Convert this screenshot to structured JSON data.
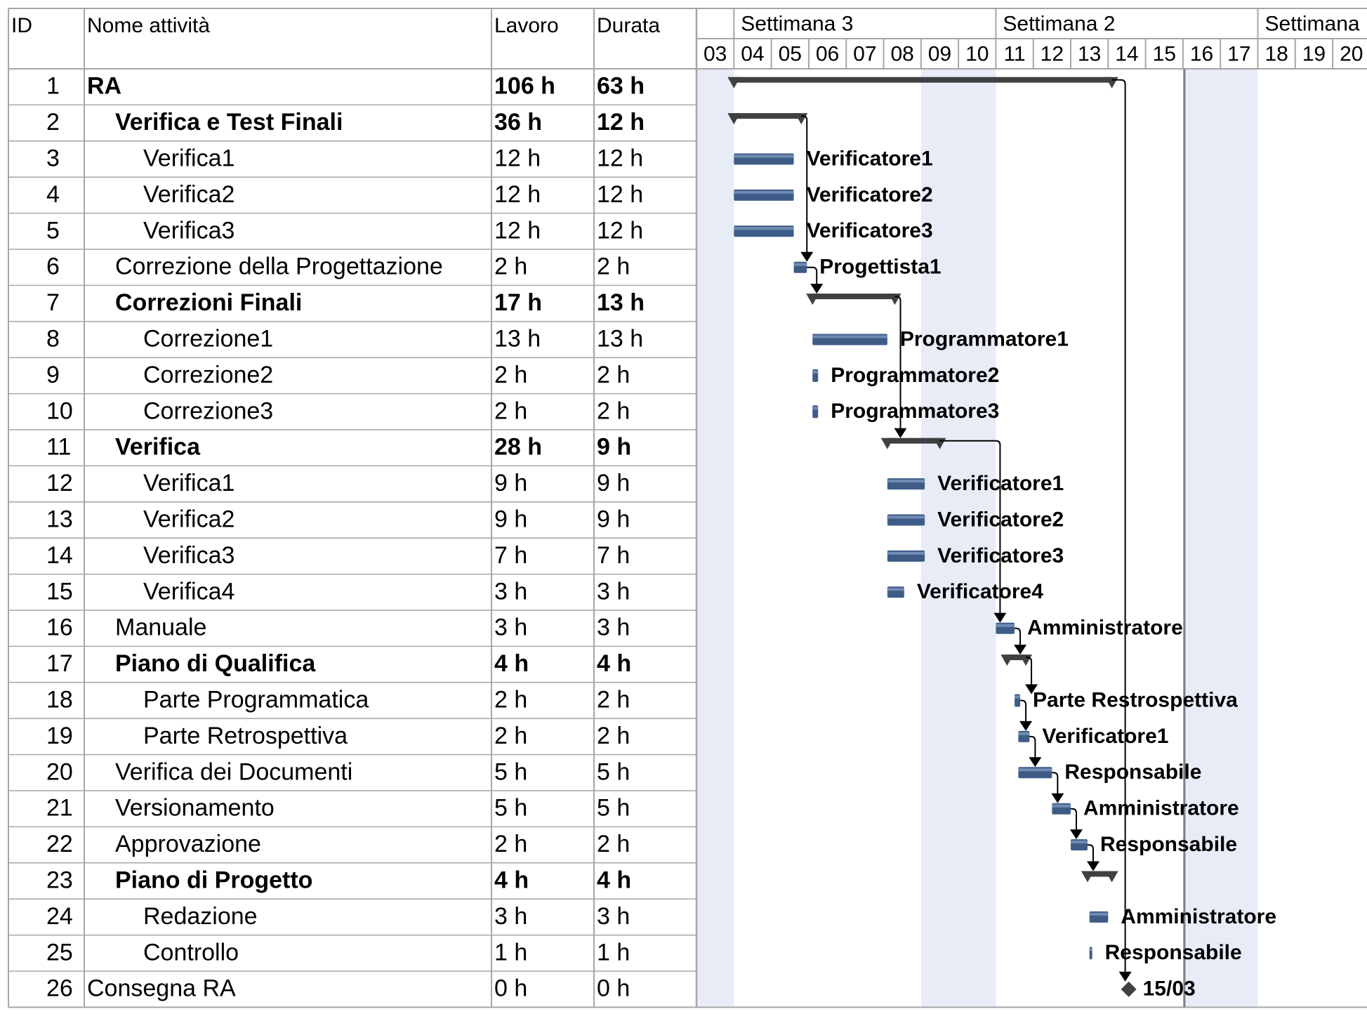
{
  "table": {
    "headers": {
      "id": "ID",
      "name": "Nome attività",
      "work": "Lavoro",
      "duration": "Durata"
    }
  },
  "timescale": {
    "weeks": [
      "Settimana 3",
      "Settimana 2",
      "Settimana"
    ],
    "days": [
      "03",
      "04",
      "05",
      "06",
      "07",
      "08",
      "09",
      "10",
      "11",
      "12",
      "13",
      "14",
      "15",
      "16",
      "17",
      "18",
      "19",
      "20"
    ],
    "week_start_days": [
      1,
      8,
      15
    ],
    "shaded_days": [
      0,
      6,
      7,
      13,
      14
    ],
    "status_line_after_day": 12
  },
  "colors": {
    "grid": "#a6a6a6",
    "weekend_shade": "#e8ecf7",
    "task_bar": "#3e5c88",
    "task_bar_light": "#7f97bd",
    "summary_bar": "#404040",
    "link": "#000000",
    "status_line": "#7f7f7f"
  },
  "chart_data": {
    "type": "table",
    "tasks": [
      {
        "id": "1",
        "name": "RA",
        "work": "106 h",
        "duration": "63 h",
        "level": 0,
        "summary": true,
        "start": 1,
        "end": 11.1,
        "resource": ""
      },
      {
        "id": "2",
        "name": "Verifica e Test Finali",
        "work": "36 h",
        "duration": "12 h",
        "level": 1,
        "summary": true,
        "start": 1,
        "end": 2.8,
        "resource": ""
      },
      {
        "id": "3",
        "name": "Verifica1",
        "work": "12 h",
        "duration": "12 h",
        "level": 2,
        "summary": false,
        "start": 1,
        "end": 2.6,
        "resource": "Verificatore1"
      },
      {
        "id": "4",
        "name": "Verifica2",
        "work": "12 h",
        "duration": "12 h",
        "level": 2,
        "summary": false,
        "start": 1,
        "end": 2.6,
        "resource": "Verificatore2"
      },
      {
        "id": "5",
        "name": "Verifica3",
        "work": "12 h",
        "duration": "12 h",
        "level": 2,
        "summary": false,
        "start": 1,
        "end": 2.6,
        "resource": "Verificatore3"
      },
      {
        "id": "6",
        "name": "Correzione della Progettazione",
        "work": "2 h",
        "duration": "2 h",
        "level": 1,
        "summary": false,
        "start": 2.6,
        "end": 2.95,
        "resource": "Progettista1"
      },
      {
        "id": "7",
        "name": "Correzioni Finali",
        "work": "17 h",
        "duration": "13 h",
        "level": 1,
        "summary": true,
        "start": 3.1,
        "end": 5.3,
        "resource": ""
      },
      {
        "id": "8",
        "name": "Correzione1",
        "work": "13 h",
        "duration": "13 h",
        "level": 2,
        "summary": false,
        "start": 3.1,
        "end": 5.1,
        "resource": "Programmatore1"
      },
      {
        "id": "9",
        "name": "Correzione2",
        "work": "2 h",
        "duration": "2 h",
        "level": 2,
        "summary": false,
        "start": 3.1,
        "end": 3.25,
        "resource": "Programmatore2"
      },
      {
        "id": "10",
        "name": "Correzione3",
        "work": "2 h",
        "duration": "2 h",
        "level": 2,
        "summary": false,
        "start": 3.1,
        "end": 3.25,
        "resource": "Programmatore3"
      },
      {
        "id": "11",
        "name": "Verifica",
        "work": "28 h",
        "duration": "9 h",
        "level": 1,
        "summary": true,
        "start": 5.1,
        "end": 6.5,
        "resource": ""
      },
      {
        "id": "12",
        "name": "Verifica1",
        "work": "9 h",
        "duration": "9 h",
        "level": 2,
        "summary": false,
        "start": 5.1,
        "end": 6.1,
        "resource": "Verificatore1"
      },
      {
        "id": "13",
        "name": "Verifica2",
        "work": "9 h",
        "duration": "9 h",
        "level": 2,
        "summary": false,
        "start": 5.1,
        "end": 6.1,
        "resource": "Verificatore2"
      },
      {
        "id": "14",
        "name": "Verifica3",
        "work": "7 h",
        "duration": "7 h",
        "level": 2,
        "summary": false,
        "start": 5.1,
        "end": 6.1,
        "resource": "Verificatore3"
      },
      {
        "id": "15",
        "name": "Verifica4",
        "work": "3 h",
        "duration": "3 h",
        "level": 2,
        "summary": false,
        "start": 5.1,
        "end": 5.55,
        "resource": "Verificatore4"
      },
      {
        "id": "16",
        "name": "Manuale",
        "work": "3 h",
        "duration": "3 h",
        "level": 1,
        "summary": false,
        "start": 8,
        "end": 8.5,
        "resource": "Amministratore"
      },
      {
        "id": "17",
        "name": "Piano di Qualifica",
        "work": "4 h",
        "duration": "4 h",
        "level": 1,
        "summary": true,
        "start": 8.3,
        "end": 8.8,
        "resource": ""
      },
      {
        "id": "18",
        "name": "Parte Programmatica",
        "work": "2 h",
        "duration": "2 h",
        "level": 2,
        "summary": false,
        "start": 8.5,
        "end": 8.65,
        "resource": "Parte Restrospettiva"
      },
      {
        "id": "19",
        "name": "Parte Retrospettiva",
        "work": "2 h",
        "duration": "2 h",
        "level": 2,
        "summary": false,
        "start": 8.6,
        "end": 8.9,
        "resource": "Verificatore1"
      },
      {
        "id": "20",
        "name": "Verifica dei Documenti",
        "work": "5 h",
        "duration": "5 h",
        "level": 1,
        "summary": false,
        "start": 8.6,
        "end": 9.5,
        "resource": "Responsabile"
      },
      {
        "id": "21",
        "name": "Versionamento",
        "work": "5 h",
        "duration": "5 h",
        "level": 1,
        "summary": false,
        "start": 9.5,
        "end": 10.0,
        "resource": "Amministratore"
      },
      {
        "id": "22",
        "name": "Approvazione",
        "work": "2 h",
        "duration": "2 h",
        "level": 1,
        "summary": false,
        "start": 10.0,
        "end": 10.45,
        "resource": "Responsabile"
      },
      {
        "id": "23",
        "name": "Piano di Progetto",
        "work": "4 h",
        "duration": "4 h",
        "level": 1,
        "summary": true,
        "start": 10.45,
        "end": 11.1,
        "resource": ""
      },
      {
        "id": "24",
        "name": "Redazione",
        "work": "3 h",
        "duration": "3 h",
        "level": 2,
        "summary": false,
        "start": 10.5,
        "end": 11.0,
        "resource": "Amministratore"
      },
      {
        "id": "25",
        "name": "Controllo",
        "work": "1 h",
        "duration": "1 h",
        "level": 2,
        "summary": false,
        "start": 10.5,
        "end": 10.55,
        "resource": "Responsabile"
      },
      {
        "id": "26",
        "name": "Consegna RA",
        "work": "0 h",
        "duration": "0 h",
        "level": 0,
        "summary": false,
        "milestone": true,
        "start": 11.55,
        "end": 11.55,
        "resource": "15/03"
      }
    ],
    "links": [
      [
        2,
        6
      ],
      [
        6,
        7
      ],
      [
        7,
        11
      ],
      [
        11,
        16
      ],
      [
        16,
        17
      ],
      [
        17,
        18
      ],
      [
        18,
        19
      ],
      [
        19,
        20
      ],
      [
        20,
        21
      ],
      [
        21,
        22
      ],
      [
        22,
        23
      ],
      [
        1,
        26
      ]
    ]
  }
}
